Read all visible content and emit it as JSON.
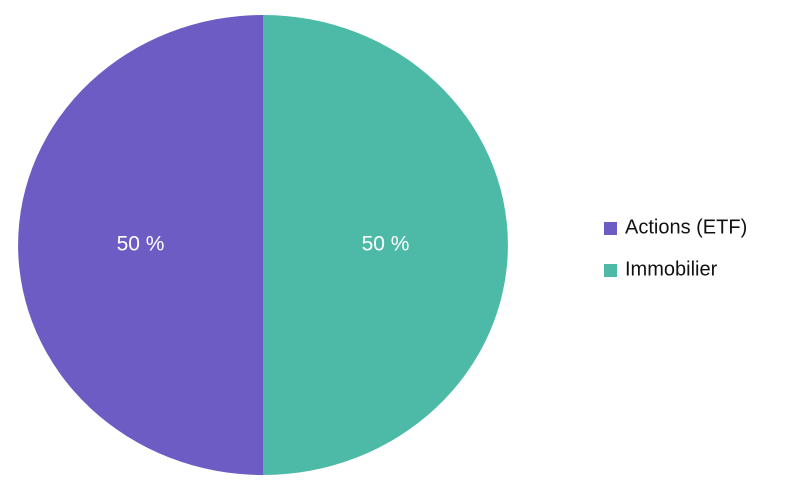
{
  "chart_data": {
    "type": "pie",
    "categories": [
      "Actions (ETF)",
      "Immobilier"
    ],
    "values": [
      50,
      50
    ],
    "value_labels": [
      "50 %",
      "50 %"
    ],
    "colors": [
      "#6c5cc4",
      "#4cbaa7"
    ],
    "legend": "right"
  }
}
